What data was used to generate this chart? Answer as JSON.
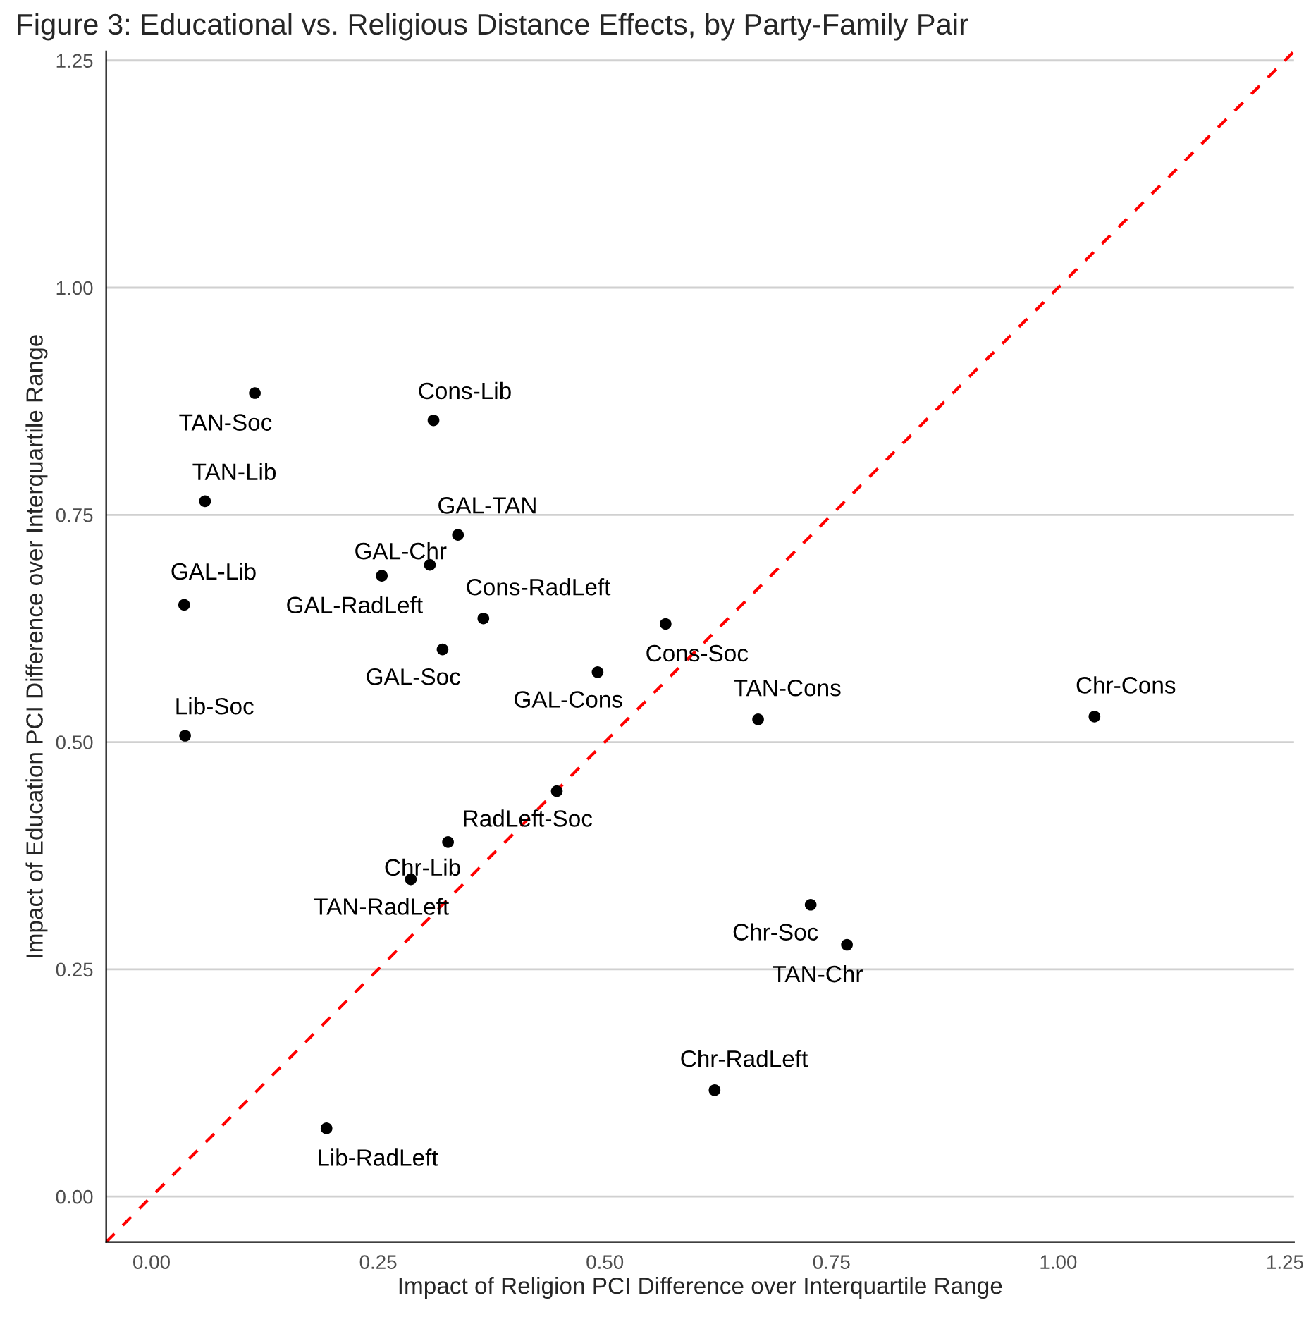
{
  "chart_data": {
    "type": "scatter",
    "title": "Figure 3: Educational vs. Religious Distance Effects, by Party-Family Pair",
    "xlabel": "Impact of Religion PCI Difference over Interquartile Range",
    "ylabel": "Impact of Education PCI Difference over Interquartile Range",
    "x": [
      0.114,
      0.311,
      0.059,
      0.338,
      0.307,
      0.254,
      0.036,
      0.366,
      0.567,
      0.321,
      0.492,
      0.669,
      1.04,
      0.037,
      0.447,
      0.327,
      0.286,
      0.727,
      0.767,
      0.621,
      0.193
    ],
    "series": [
      {
        "color": "#000000",
        "marker": "circle",
        "values": [
          0.884,
          0.854,
          0.765,
          0.728,
          0.695,
          0.683,
          0.651,
          0.636,
          0.63,
          0.602,
          0.577,
          0.525,
          0.528,
          0.507,
          0.446,
          0.39,
          0.349,
          0.321,
          0.277,
          0.117,
          0.075
        ]
      },
      {
        "type": "line",
        "color": "#ff0000",
        "line_style": "dashed",
        "x": [
          -0.05,
          1.26
        ],
        "values": [
          -0.05,
          1.26
        ]
      }
    ],
    "annotations": [
      {
        "text": "TAN-Soc",
        "x": 0.114,
        "y": 0.884
      },
      {
        "text": "Cons-Lib",
        "x": 0.311,
        "y": 0.854
      },
      {
        "text": "TAN-Lib",
        "x": 0.059,
        "y": 0.765
      },
      {
        "text": "GAL-TAN",
        "x": 0.338,
        "y": 0.728
      },
      {
        "text": "GAL-Chr",
        "x": 0.307,
        "y": 0.695
      },
      {
        "text": "GAL-RadLeft",
        "x": 0.254,
        "y": 0.683
      },
      {
        "text": "GAL-Lib",
        "x": 0.036,
        "y": 0.651
      },
      {
        "text": "Cons-RadLeft",
        "x": 0.366,
        "y": 0.636
      },
      {
        "text": "Cons-Soc",
        "x": 0.567,
        "y": 0.63
      },
      {
        "text": "GAL-Soc",
        "x": 0.321,
        "y": 0.602
      },
      {
        "text": "GAL-Cons",
        "x": 0.492,
        "y": 0.577
      },
      {
        "text": "TAN-Cons",
        "x": 0.669,
        "y": 0.525
      },
      {
        "text": "Chr-Cons",
        "x": 1.04,
        "y": 0.528
      },
      {
        "text": "Lib-Soc",
        "x": 0.037,
        "y": 0.507
      },
      {
        "text": "RadLeft-Soc",
        "x": 0.447,
        "y": 0.446
      },
      {
        "text": "Chr-Lib",
        "x": 0.327,
        "y": 0.39
      },
      {
        "text": "TAN-RadLeft",
        "x": 0.286,
        "y": 0.349
      },
      {
        "text": "Chr-Soc",
        "x": 0.727,
        "y": 0.321
      },
      {
        "text": "TAN-Chr",
        "x": 0.767,
        "y": 0.277
      },
      {
        "text": "Chr-RadLeft",
        "x": 0.621,
        "y": 0.117
      },
      {
        "text": "Lib-RadLeft",
        "x": 0.193,
        "y": 0.075
      }
    ],
    "xlim": [
      -0.05,
      1.26
    ],
    "ylim": [
      -0.05,
      1.26
    ],
    "xticks": [
      {
        "value": 0,
        "label": "0.00"
      },
      {
        "value": 0.25,
        "label": "0.25"
      },
      {
        "value": 0.5,
        "label": "0.50"
      },
      {
        "value": 0.75,
        "label": "0.75"
      },
      {
        "value": 1,
        "label": "1.00"
      },
      {
        "value": 1.25,
        "label": "1.25"
      }
    ],
    "yticks": [
      {
        "value": 0,
        "label": "0.00"
      },
      {
        "value": 0.25,
        "label": "0.25"
      },
      {
        "value": 0.5,
        "label": "0.50"
      },
      {
        "value": 0.75,
        "label": "0.75"
      },
      {
        "value": 1,
        "label": "1.00"
      },
      {
        "value": 1.25,
        "label": "1.25"
      }
    ],
    "grid": "y"
  }
}
